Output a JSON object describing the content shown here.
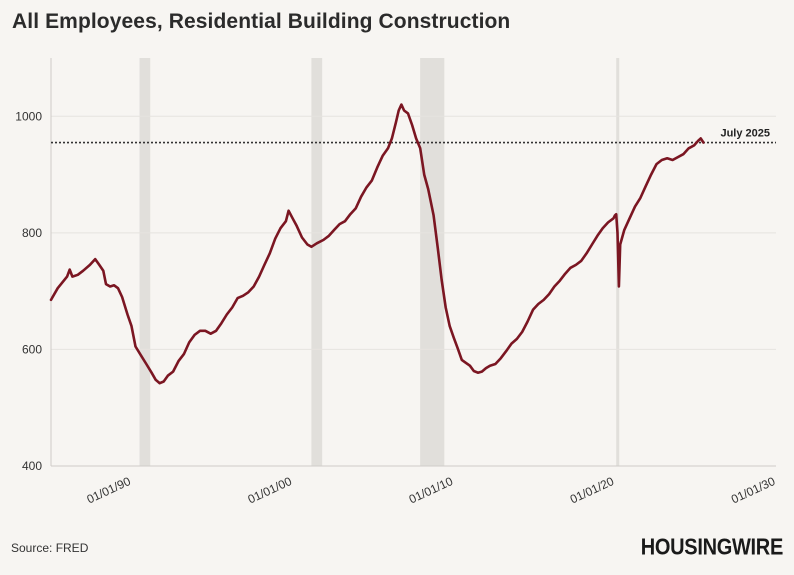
{
  "header": {
    "title": "All Employees, Residential Building Construction"
  },
  "footer": {
    "source": "Source: FRED",
    "logo_text": "HOUSINGWIRE"
  },
  "chart_data": {
    "type": "line",
    "title": "All Employees, Residential Building Construction",
    "xlabel": "",
    "ylabel": "",
    "xlim": [
      "1985-01-01",
      "2030-01-01"
    ],
    "ylim": [
      400,
      1100
    ],
    "yticks": [
      400,
      600,
      800,
      1000
    ],
    "xticks": [
      {
        "date": "1990-01-01",
        "label": "01/01/90"
      },
      {
        "date": "2000-01-01",
        "label": "01/01/00"
      },
      {
        "date": "2010-01-01",
        "label": "01/01/10"
      },
      {
        "date": "2020-01-01",
        "label": "01/01/20"
      },
      {
        "date": "2030-01-01",
        "label": "01/01/30"
      }
    ],
    "grid": true,
    "line_color": "#7b1622",
    "recession_color": "#e1dfdb",
    "recessions": [
      {
        "start": "1990-07-01",
        "end": "1991-03-01"
      },
      {
        "start": "2001-03-01",
        "end": "2001-11-01"
      },
      {
        "start": "2007-12-01",
        "end": "2009-06-01"
      },
      {
        "start": "2020-02-01",
        "end": "2020-04-01"
      }
    ],
    "reference_line": {
      "value": 955,
      "label": "July 2025",
      "style": "dotted"
    },
    "series": [
      {
        "name": "",
        "points": [
          [
            "1985-01-01",
            685
          ],
          [
            "1985-06-01",
            705
          ],
          [
            "1986-01-01",
            725
          ],
          [
            "1986-03-01",
            737
          ],
          [
            "1986-05-01",
            725
          ],
          [
            "1986-09-01",
            728
          ],
          [
            "1987-01-01",
            735
          ],
          [
            "1987-06-01",
            745
          ],
          [
            "1987-10-01",
            755
          ],
          [
            "1988-01-01",
            745
          ],
          [
            "1988-04-01",
            735
          ],
          [
            "1988-06-01",
            712
          ],
          [
            "1988-09-01",
            708
          ],
          [
            "1988-12-01",
            710
          ],
          [
            "1989-03-01",
            705
          ],
          [
            "1989-06-01",
            690
          ],
          [
            "1989-10-01",
            660
          ],
          [
            "1990-01-01",
            640
          ],
          [
            "1990-04-01",
            605
          ],
          [
            "1990-08-01",
            590
          ],
          [
            "1990-12-01",
            575
          ],
          [
            "1991-04-01",
            560
          ],
          [
            "1991-07-01",
            548
          ],
          [
            "1991-10-01",
            542
          ],
          [
            "1992-01-01",
            545
          ],
          [
            "1992-04-01",
            555
          ],
          [
            "1992-08-01",
            562
          ],
          [
            "1992-12-01",
            580
          ],
          [
            "1993-04-01",
            592
          ],
          [
            "1993-08-01",
            612
          ],
          [
            "1993-12-01",
            625
          ],
          [
            "1994-04-01",
            632
          ],
          [
            "1994-08-01",
            632
          ],
          [
            "1994-12-01",
            627
          ],
          [
            "1995-04-01",
            632
          ],
          [
            "1995-08-01",
            645
          ],
          [
            "1995-12-01",
            660
          ],
          [
            "1996-04-01",
            672
          ],
          [
            "1996-08-01",
            688
          ],
          [
            "1996-12-01",
            692
          ],
          [
            "1997-04-01",
            698
          ],
          [
            "1997-08-01",
            708
          ],
          [
            "1997-12-01",
            725
          ],
          [
            "1998-04-01",
            745
          ],
          [
            "1998-08-01",
            765
          ],
          [
            "1998-12-01",
            790
          ],
          [
            "1999-04-01",
            808
          ],
          [
            "1999-08-01",
            820
          ],
          [
            "1999-10-01",
            838
          ],
          [
            "2000-01-01",
            825
          ],
          [
            "2000-04-01",
            812
          ],
          [
            "2000-08-01",
            792
          ],
          [
            "2000-12-01",
            780
          ],
          [
            "2001-03-01",
            776
          ],
          [
            "2001-07-01",
            782
          ],
          [
            "2001-12-01",
            788
          ],
          [
            "2002-04-01",
            795
          ],
          [
            "2002-08-01",
            805
          ],
          [
            "2002-12-01",
            815
          ],
          [
            "2003-04-01",
            820
          ],
          [
            "2003-08-01",
            832
          ],
          [
            "2003-12-01",
            842
          ],
          [
            "2004-04-01",
            862
          ],
          [
            "2004-08-01",
            878
          ],
          [
            "2004-12-01",
            890
          ],
          [
            "2005-04-01",
            912
          ],
          [
            "2005-08-01",
            932
          ],
          [
            "2005-12-01",
            945
          ],
          [
            "2006-03-01",
            962
          ],
          [
            "2006-06-01",
            990
          ],
          [
            "2006-08-01",
            1010
          ],
          [
            "2006-10-01",
            1020
          ],
          [
            "2006-12-01",
            1010
          ],
          [
            "2007-03-01",
            1005
          ],
          [
            "2007-06-01",
            985
          ],
          [
            "2007-09-01",
            962
          ],
          [
            "2007-12-01",
            945
          ],
          [
            "2008-03-01",
            900
          ],
          [
            "2008-06-01",
            875
          ],
          [
            "2008-10-01",
            830
          ],
          [
            "2009-01-01",
            775
          ],
          [
            "2009-04-01",
            720
          ],
          [
            "2009-07-01",
            672
          ],
          [
            "2009-10-01",
            640
          ],
          [
            "2010-01-01",
            620
          ],
          [
            "2010-04-01",
            602
          ],
          [
            "2010-07-01",
            582
          ],
          [
            "2010-10-01",
            577
          ],
          [
            "2011-01-01",
            572
          ],
          [
            "2011-04-01",
            563
          ],
          [
            "2011-07-01",
            560
          ],
          [
            "2011-10-01",
            562
          ],
          [
            "2012-01-01",
            568
          ],
          [
            "2012-04-01",
            572
          ],
          [
            "2012-08-01",
            575
          ],
          [
            "2012-12-01",
            585
          ],
          [
            "2013-04-01",
            597
          ],
          [
            "2013-08-01",
            610
          ],
          [
            "2013-12-01",
            618
          ],
          [
            "2014-04-01",
            630
          ],
          [
            "2014-08-01",
            648
          ],
          [
            "2014-12-01",
            668
          ],
          [
            "2015-04-01",
            678
          ],
          [
            "2015-08-01",
            685
          ],
          [
            "2015-12-01",
            695
          ],
          [
            "2016-04-01",
            708
          ],
          [
            "2016-08-01",
            718
          ],
          [
            "2016-12-01",
            730
          ],
          [
            "2017-04-01",
            740
          ],
          [
            "2017-08-01",
            745
          ],
          [
            "2017-12-01",
            752
          ],
          [
            "2018-04-01",
            765
          ],
          [
            "2018-08-01",
            780
          ],
          [
            "2018-12-01",
            795
          ],
          [
            "2019-04-01",
            808
          ],
          [
            "2019-08-01",
            818
          ],
          [
            "2019-12-01",
            825
          ],
          [
            "2020-01-01",
            830
          ],
          [
            "2020-02-01",
            832
          ],
          [
            "2020-03-01",
            800
          ],
          [
            "2020-04-01",
            708
          ],
          [
            "2020-05-01",
            780
          ],
          [
            "2020-08-01",
            805
          ],
          [
            "2020-12-01",
            825
          ],
          [
            "2021-04-01",
            845
          ],
          [
            "2021-08-01",
            860
          ],
          [
            "2021-12-01",
            880
          ],
          [
            "2022-04-01",
            900
          ],
          [
            "2022-08-01",
            918
          ],
          [
            "2022-12-01",
            925
          ],
          [
            "2023-04-01",
            928
          ],
          [
            "2023-08-01",
            925
          ],
          [
            "2023-12-01",
            930
          ],
          [
            "2024-04-01",
            935
          ],
          [
            "2024-08-01",
            945
          ],
          [
            "2024-12-01",
            950
          ],
          [
            "2025-03-01",
            958
          ],
          [
            "2025-05-01",
            962
          ],
          [
            "2025-07-01",
            955
          ]
        ]
      }
    ]
  }
}
